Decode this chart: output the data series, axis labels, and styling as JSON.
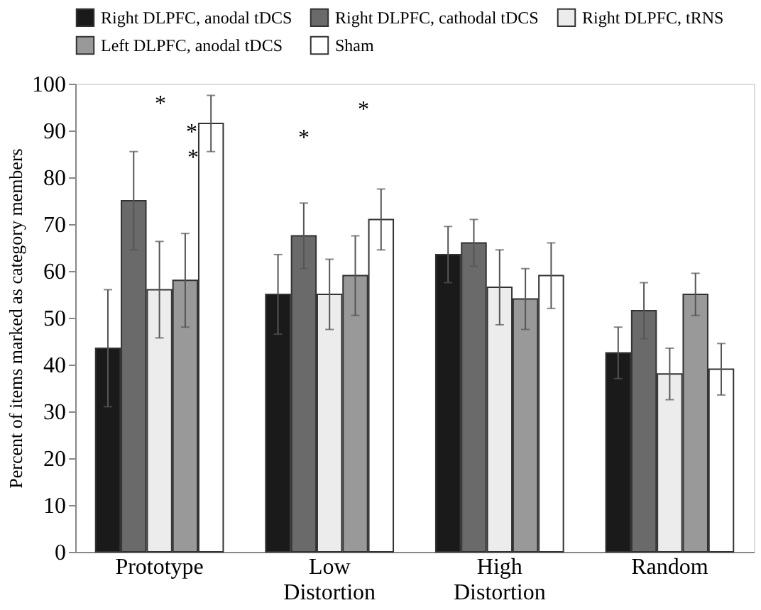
{
  "chart_data": {
    "type": "bar",
    "ylabel": "Percent of items marked as category members",
    "categories": [
      "Prototype",
      "Low Distortion",
      "High Distortion",
      "Random"
    ],
    "series": [
      {
        "name": "Right DLPFC, anodal tDCS",
        "color": "#1a1a1a",
        "values": [
          43.5,
          55,
          63.5,
          42.5
        ],
        "errors": [
          12.5,
          8.5,
          6,
          5.5
        ]
      },
      {
        "name": "Right DLPFC, cathodal tDCS",
        "color": "#6a6a6a",
        "values": [
          75,
          67.5,
          66,
          51.5
        ],
        "errors": [
          10.5,
          7,
          5,
          6
        ]
      },
      {
        "name": "Right DLPFC, tRNS",
        "color": "#ececec",
        "values": [
          56,
          55,
          56.5,
          38
        ],
        "errors": [
          10.3,
          7.5,
          8,
          5.5
        ]
      },
      {
        "name": "Left DLPFC, anodal tDCS",
        "color": "#999999",
        "values": [
          58,
          59,
          54,
          55
        ],
        "errors": [
          10,
          8.5,
          6.5,
          4.5
        ]
      },
      {
        "name": "Sham",
        "color": "#ffffff",
        "values": [
          91.5,
          71,
          59,
          39
        ],
        "errors": [
          6,
          6.5,
          7,
          5.5
        ]
      }
    ],
    "ylim": [
      0,
      100
    ],
    "yticks": [
      0,
      10,
      20,
      30,
      40,
      50,
      60,
      70,
      80,
      90,
      100
    ],
    "grid": false,
    "legend": "top",
    "annotations": [
      "*",
      "*",
      "*",
      "*",
      "*"
    ]
  }
}
